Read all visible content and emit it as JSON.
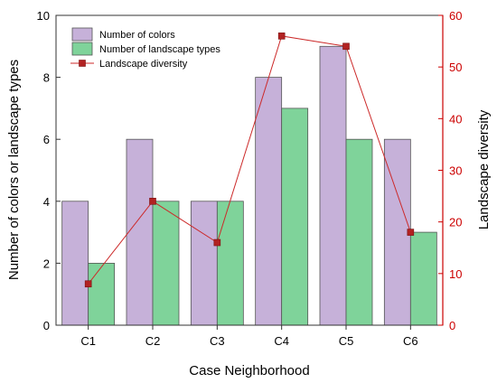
{
  "chart_data": {
    "type": "bar",
    "categories": [
      "C1",
      "C2",
      "C3",
      "C4",
      "C5",
      "C6"
    ],
    "series": [
      {
        "name": "Number of colors",
        "type": "bar",
        "axis": "left",
        "values": [
          4,
          6,
          4,
          8,
          9,
          6
        ],
        "color": "#c6b1d9"
      },
      {
        "name": "Number of landscape types",
        "type": "bar",
        "axis": "left",
        "values": [
          2,
          4,
          4,
          7,
          6,
          3
        ],
        "color": "#7fd39a"
      },
      {
        "name": "Landscape diversity",
        "type": "line",
        "axis": "right",
        "values": [
          8,
          24,
          16,
          56,
          54,
          18
        ],
        "color": "#cc2a2a",
        "marker_color": "#b22222"
      }
    ],
    "xlabel": "Case Neighborhood",
    "ylabel": "Number of colors or landscape types",
    "y2label": "Landscape diversity",
    "ylim": [
      0,
      10
    ],
    "y2lim": [
      0,
      60
    ],
    "yticks": [
      0,
      2,
      4,
      6,
      8,
      10
    ],
    "y2ticks": [
      0,
      10,
      20,
      30,
      40,
      50,
      60
    ],
    "y2_axis_color": "#cc0000",
    "grid": false,
    "legend_position": "top-left"
  }
}
